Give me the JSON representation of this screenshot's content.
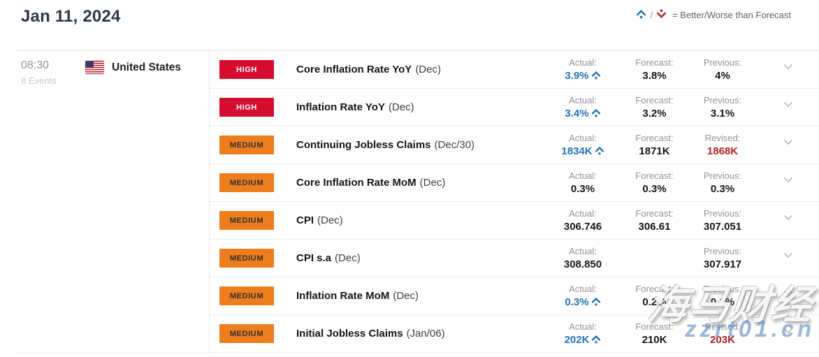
{
  "page": {
    "title": "Jan 11, 2024"
  },
  "legend": {
    "better_icon": "caret-up-with-dot",
    "worse_icon": "caret-down-with-dot",
    "separator": "/",
    "label": "= Better/Worse than Forecast"
  },
  "group": {
    "time": "08:30",
    "events_count": "8 Events",
    "flag_icon": "us-flag",
    "country": "United States"
  },
  "events": [
    {
      "importance": "HIGH",
      "name": "Core Inflation Rate YoY",
      "period": "(Dec)",
      "stats": [
        {
          "label": "Actual:",
          "value": "3.9%",
          "state": "better"
        },
        {
          "label": "Forecast:",
          "value": "3.8%"
        },
        {
          "label": "Previous:",
          "value": "4%"
        }
      ]
    },
    {
      "importance": "HIGH",
      "name": "Inflation Rate YoY",
      "period": "(Dec)",
      "stats": [
        {
          "label": "Actual:",
          "value": "3.4%",
          "state": "better"
        },
        {
          "label": "Forecast:",
          "value": "3.2%"
        },
        {
          "label": "Previous:",
          "value": "3.1%"
        }
      ]
    },
    {
      "importance": "MEDIUM",
      "name": "Continuing Jobless Claims",
      "period": "(Dec/30)",
      "stats": [
        {
          "label": "Actual:",
          "value": "1834K",
          "state": "better"
        },
        {
          "label": "Forecast:",
          "value": "1871K"
        },
        {
          "label": "Revised:",
          "value": "1868K",
          "state": "revised"
        }
      ]
    },
    {
      "importance": "MEDIUM",
      "name": "Core Inflation Rate MoM",
      "period": "(Dec)",
      "stats": [
        {
          "label": "Actual:",
          "value": "0.3%"
        },
        {
          "label": "Forecast:",
          "value": "0.3%"
        },
        {
          "label": "Previous:",
          "value": "0.3%"
        }
      ]
    },
    {
      "importance": "MEDIUM",
      "name": "CPI",
      "period": "(Dec)",
      "stats": [
        {
          "label": "Actual:",
          "value": "306.746"
        },
        {
          "label": "Forecast:",
          "value": "306.61"
        },
        {
          "label": "Previous:",
          "value": "307.051"
        }
      ]
    },
    {
      "importance": "MEDIUM",
      "name": "CPI s.a",
      "period": "(Dec)",
      "stats": [
        {
          "label": "Actual:",
          "value": "308.850"
        },
        {
          "label": "",
          "value": ""
        },
        {
          "label": "Previous:",
          "value": "307.917"
        }
      ]
    },
    {
      "importance": "MEDIUM",
      "name": "Inflation Rate MoM",
      "period": "(Dec)",
      "stats": [
        {
          "label": "Actual:",
          "value": "0.3%",
          "state": "better"
        },
        {
          "label": "Forecast:",
          "value": "0.2%"
        },
        {
          "label": "Previous:",
          "value": "0.1%"
        }
      ]
    },
    {
      "importance": "MEDIUM",
      "name": "Initial Jobless Claims",
      "period": "(Jan/06)",
      "stats": [
        {
          "label": "Actual:",
          "value": "202K",
          "state": "better"
        },
        {
          "label": "Forecast:",
          "value": "210K"
        },
        {
          "label": "Revised:",
          "value": "203K",
          "state": "revised"
        }
      ]
    }
  ],
  "expander_icon": "chevron-down",
  "colors": {
    "high_badge": "#d40d2e",
    "medium_badge": "#ee7d1e",
    "better_value": "#2471b8",
    "revised_value": "#b22020",
    "title_text": "#2b3949"
  },
  "watermark": {
    "line1": "海马财经",
    "line2": "zzrt01.cn"
  }
}
